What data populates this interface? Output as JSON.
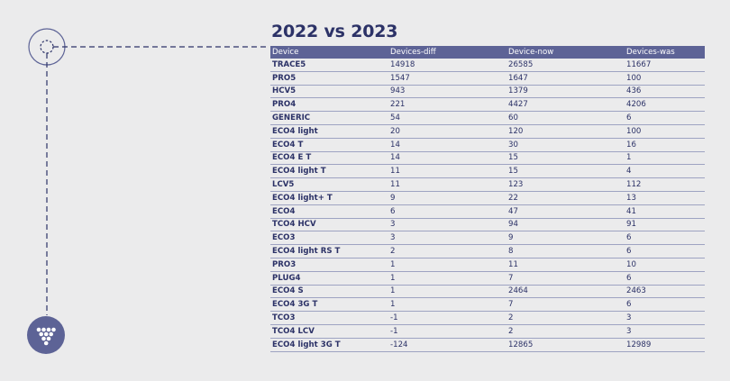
{
  "title": "2022 vs 2023",
  "table": {
    "headers": [
      "Device",
      "Devices-diff",
      "Device-now",
      "Devices-was"
    ],
    "rows": [
      [
        "TRACE5",
        "14918",
        "26585",
        "11667"
      ],
      [
        "PRO5",
        "1547",
        "1647",
        "100"
      ],
      [
        "HCV5",
        "943",
        "1379",
        "436"
      ],
      [
        "PRO4",
        "221",
        "4427",
        "4206"
      ],
      [
        "GENERIC",
        "54",
        "60",
        "6"
      ],
      [
        "ECO4 light",
        "20",
        "120",
        "100"
      ],
      [
        "ECO4 T",
        "14",
        "30",
        "16"
      ],
      [
        "ECO4 E T",
        "14",
        "15",
        "1"
      ],
      [
        "ECO4 light T",
        "11",
        "15",
        "4"
      ],
      [
        "LCV5",
        "11",
        "123",
        "112"
      ],
      [
        "ECO4 light+ T",
        "9",
        "22",
        "13"
      ],
      [
        "ECO4",
        "6",
        "47",
        "41"
      ],
      [
        "TCO4 HCV",
        "3",
        "94",
        "91"
      ],
      [
        "ECO3",
        "3",
        "9",
        "6"
      ],
      [
        "ECO4 light RS T",
        "2",
        "8",
        "6"
      ],
      [
        "PRO3",
        "1",
        "11",
        "10"
      ],
      [
        "PLUG4",
        "1",
        "7",
        "6"
      ],
      [
        "ECO4 S",
        "1",
        "2464",
        "2463"
      ],
      [
        "ECO4 3G T",
        "1",
        "7",
        "6"
      ],
      [
        "TCO3",
        "-1",
        "2",
        "3"
      ],
      [
        "TCO4 LCV",
        "-1",
        "2",
        "3"
      ],
      [
        "ECO4 light 3G T",
        "-124",
        "12865",
        "12989"
      ]
    ]
  },
  "colors": {
    "navy": "#2c3267",
    "header_bg": "#5d6396",
    "background": "#ebebec"
  },
  "icons": {
    "connector_node": "dashed-circle-icon",
    "brand_logo": "dots-logo-icon"
  }
}
